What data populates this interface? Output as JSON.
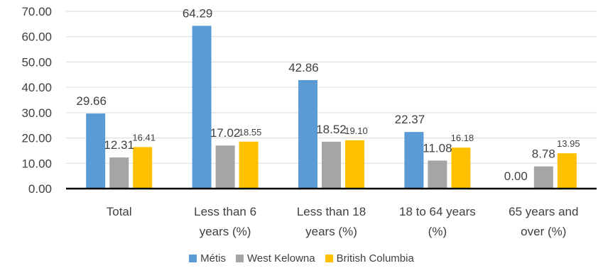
{
  "chart_data": {
    "type": "bar",
    "title": "",
    "xlabel": "",
    "ylabel": "",
    "ylim": [
      0,
      70
    ],
    "yticks": [
      "0.00",
      "10.00",
      "20.00",
      "30.00",
      "40.00",
      "50.00",
      "60.00",
      "70.00"
    ],
    "grid": true,
    "legend_position": "bottom",
    "categories": [
      [
        "Total"
      ],
      [
        "Less than 6",
        "years (%)"
      ],
      [
        "Less than 18",
        "years (%)"
      ],
      [
        "18 to 64 years",
        "(%)"
      ],
      [
        "65 years and",
        "over (%)"
      ]
    ],
    "series": [
      {
        "name": "Métis",
        "color": "#5B9BD5",
        "values": [
          29.66,
          64.29,
          42.86,
          22.37,
          0.0
        ],
        "labels": [
          "29.66",
          "64.29",
          "42.86",
          "22.37",
          "0.00"
        ]
      },
      {
        "name": "West Kelowna",
        "color": "#A5A5A5",
        "values": [
          12.31,
          17.02,
          18.52,
          11.08,
          8.78
        ],
        "labels": [
          "12.31",
          "17.02",
          "18.52",
          "11.08",
          "8.78"
        ]
      },
      {
        "name": "British Columbia",
        "color": "#FFC000",
        "values": [
          16.41,
          18.55,
          19.1,
          16.18,
          13.95
        ],
        "labels": [
          "16.41",
          "18.55",
          "19.10",
          "16.18",
          "13.95"
        ]
      }
    ]
  }
}
